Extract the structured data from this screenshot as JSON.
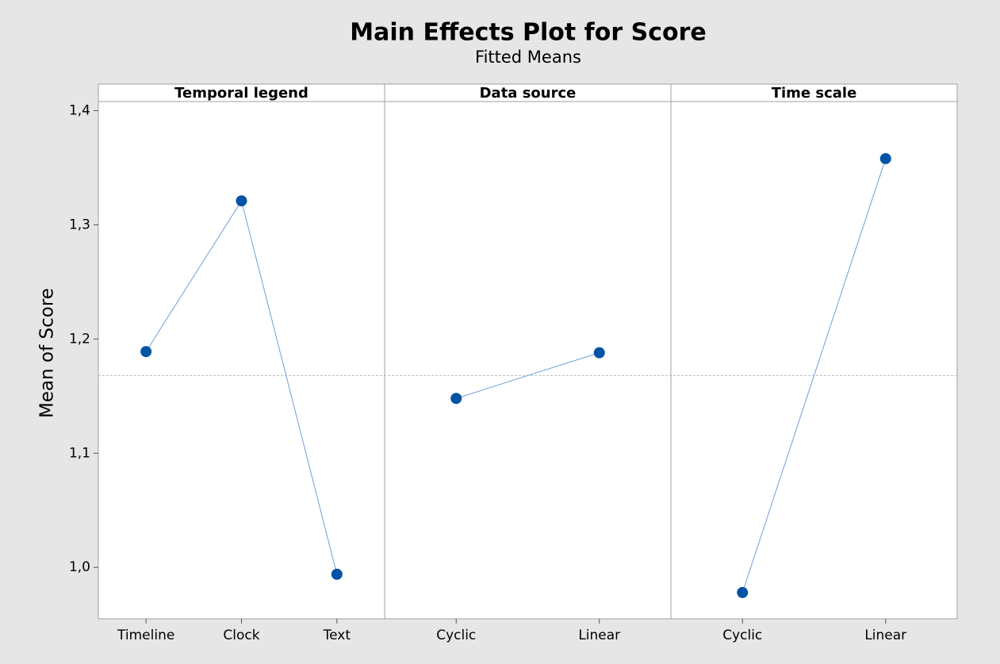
{
  "chart_data": {
    "type": "line",
    "title": "Main Effects Plot for Score",
    "subtitle": "Fitted Means",
    "ylabel": "Mean of Score",
    "color": "#0054a6",
    "line_color": "#6f9fd8",
    "ylim": [
      0.955,
      1.408
    ],
    "yticks": [
      {
        "value": 1.0,
        "label": "1,0"
      },
      {
        "value": 1.1,
        "label": "1,1"
      },
      {
        "value": 1.2,
        "label": "1,2"
      },
      {
        "value": 1.3,
        "label": "1,3"
      },
      {
        "value": 1.4,
        "label": "1,4"
      }
    ],
    "mean_line": 1.168,
    "panels": [
      {
        "title": "Temporal legend",
        "categories": [
          "Timeline",
          "Clock",
          "Text"
        ],
        "values": [
          1.189,
          1.321,
          0.994
        ]
      },
      {
        "title": "Data source",
        "categories": [
          "Cyclic",
          "Linear"
        ],
        "values": [
          1.148,
          1.188
        ]
      },
      {
        "title": "Time scale",
        "categories": [
          "Cyclic",
          "Linear"
        ],
        "values": [
          0.978,
          1.358
        ]
      }
    ]
  }
}
